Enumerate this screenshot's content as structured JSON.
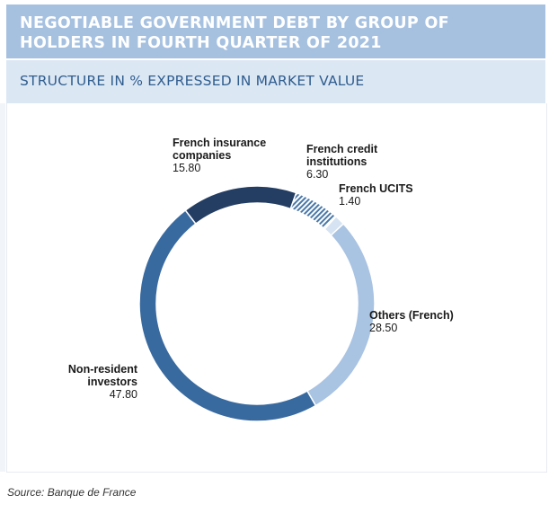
{
  "header": {
    "title": "NEGOTIABLE GOVERNMENT DEBT BY GROUP OF HOLDERS IN FOURTH QUARTER OF 2021",
    "subtitle": "STRUCTURE IN % EXPRESSED IN MARKET VALUE"
  },
  "source": "Source: Banque de France",
  "chart_data": {
    "type": "pie",
    "subtype": "donut",
    "title": "",
    "unit": "%",
    "slices": [
      {
        "name": "French insurance companies",
        "value": 15.8,
        "value_text": "15.80",
        "color": "#243e63"
      },
      {
        "name": "French credit institutions",
        "value": 6.3,
        "value_text": "6.30",
        "color": "#4a78a8",
        "pattern": "hatched"
      },
      {
        "name": "French UCITS",
        "value": 1.4,
        "value_text": "1.40",
        "color": "#d6e3f2"
      },
      {
        "name": "Others (French)",
        "value": 28.5,
        "value_text": "28.50",
        "color": "#a9c3e2"
      },
      {
        "name": "Non-resident investors",
        "value": 47.8,
        "value_text": "47.80",
        "color": "#396a9f"
      }
    ]
  }
}
